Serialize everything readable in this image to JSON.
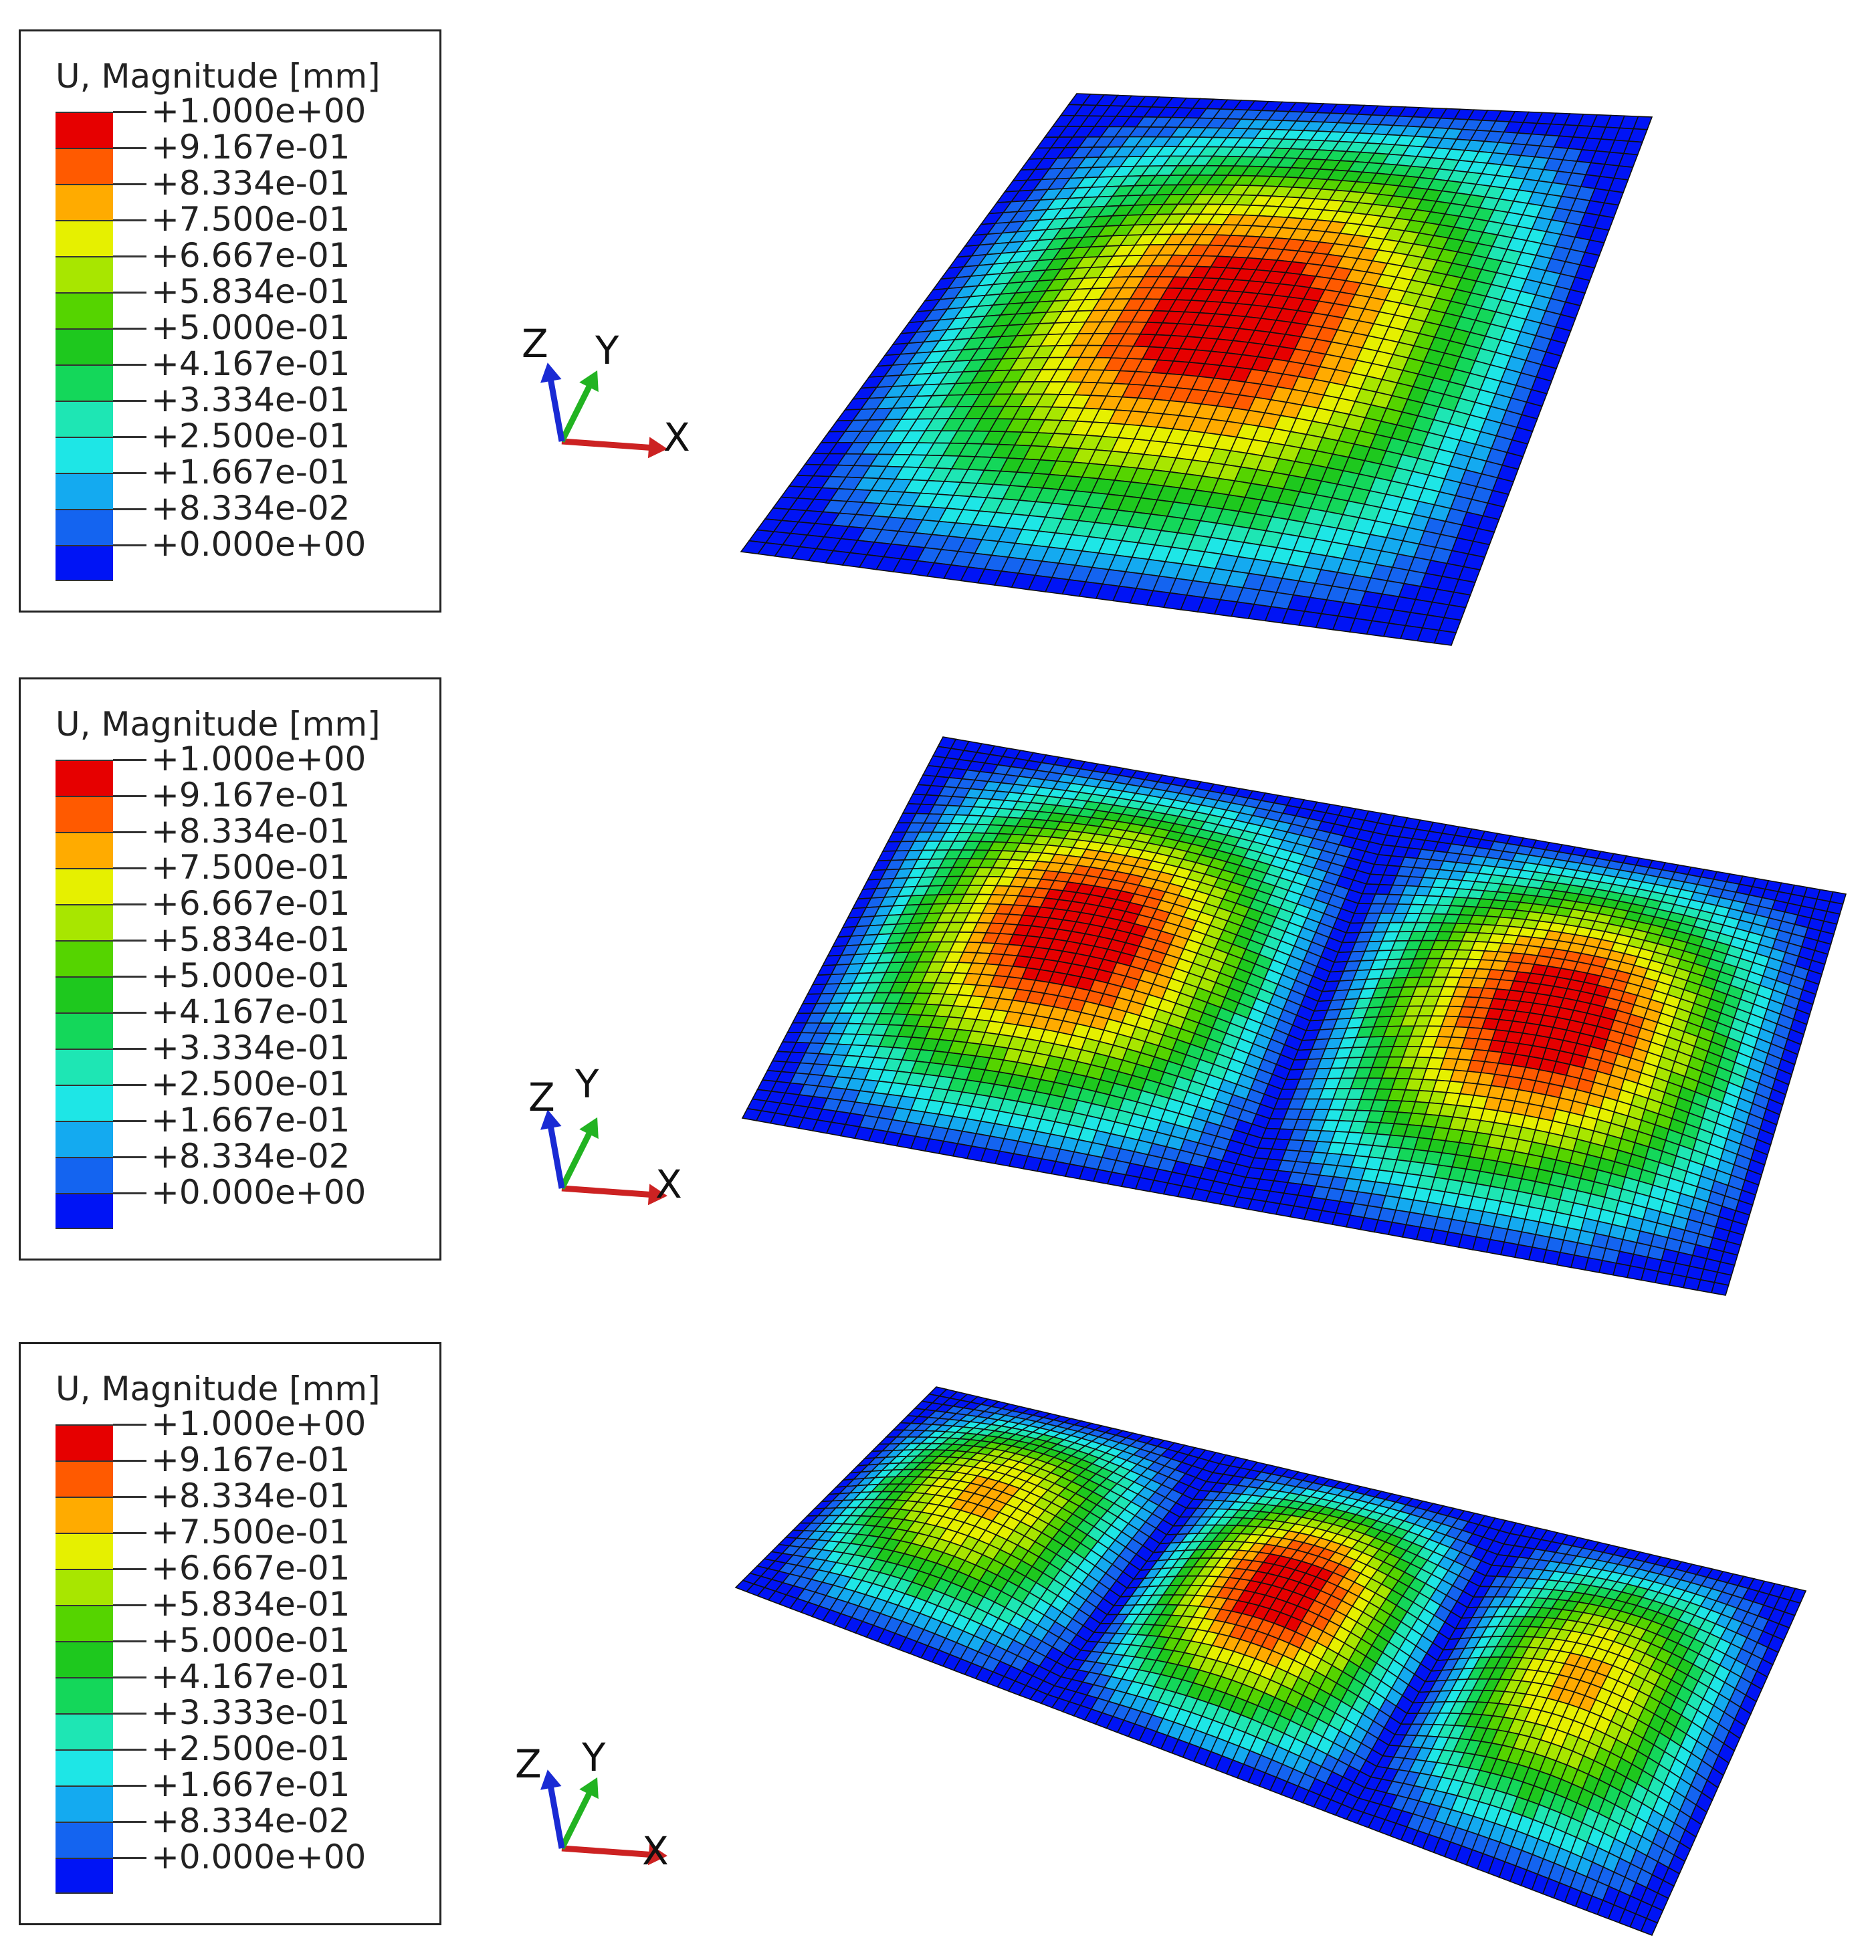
{
  "panels": [
    {
      "legend_title": "U, Magnitude [mm]",
      "labels": [
        "+1.000e+00",
        "+9.167e-01",
        "+8.334e-01",
        "+7.500e-01",
        "+6.667e-01",
        "+5.834e-01",
        "+5.000e-01",
        "+4.167e-01",
        "+3.334e-01",
        "+2.500e-01",
        "+1.667e-01",
        "+8.334e-02",
        "+0.000e+00"
      ],
      "axes": {
        "z": "Z",
        "y": "Y",
        "x": "X"
      },
      "mode_humps": 1
    },
    {
      "legend_title": "U, Magnitude [mm]",
      "labels": [
        "+1.000e+00",
        "+9.167e-01",
        "+8.334e-01",
        "+7.500e-01",
        "+6.667e-01",
        "+5.834e-01",
        "+5.000e-01",
        "+4.167e-01",
        "+3.334e-01",
        "+2.500e-01",
        "+1.667e-01",
        "+8.334e-02",
        "+0.000e+00"
      ],
      "axes": {
        "z": "Z",
        "y": "Y",
        "x": "X"
      },
      "mode_humps": 2
    },
    {
      "legend_title": "U, Magnitude [mm]",
      "labels": [
        "+1.000e+00",
        "+9.167e-01",
        "+8.334e-01",
        "+7.500e-01",
        "+6.667e-01",
        "+5.834e-01",
        "+5.000e-01",
        "+4.167e-01",
        "+3.333e-01",
        "+2.500e-01",
        "+1.667e-01",
        "+8.334e-02",
        "+0.000e+00"
      ],
      "axes": {
        "z": "Z",
        "y": "Y",
        "x": "X"
      },
      "mode_humps": 3
    }
  ],
  "colormap": [
    "#e60000",
    "#ff5a00",
    "#ffab00",
    "#e6f000",
    "#a8e600",
    "#55d400",
    "#1ec81e",
    "#14d75a",
    "#1ee6b4",
    "#1ee6e6",
    "#14aaf0",
    "#1464f0",
    "#0014f5"
  ],
  "axis_colors": {
    "z": "#1a2bd4",
    "y": "#22b322",
    "x": "#cc2222"
  }
}
